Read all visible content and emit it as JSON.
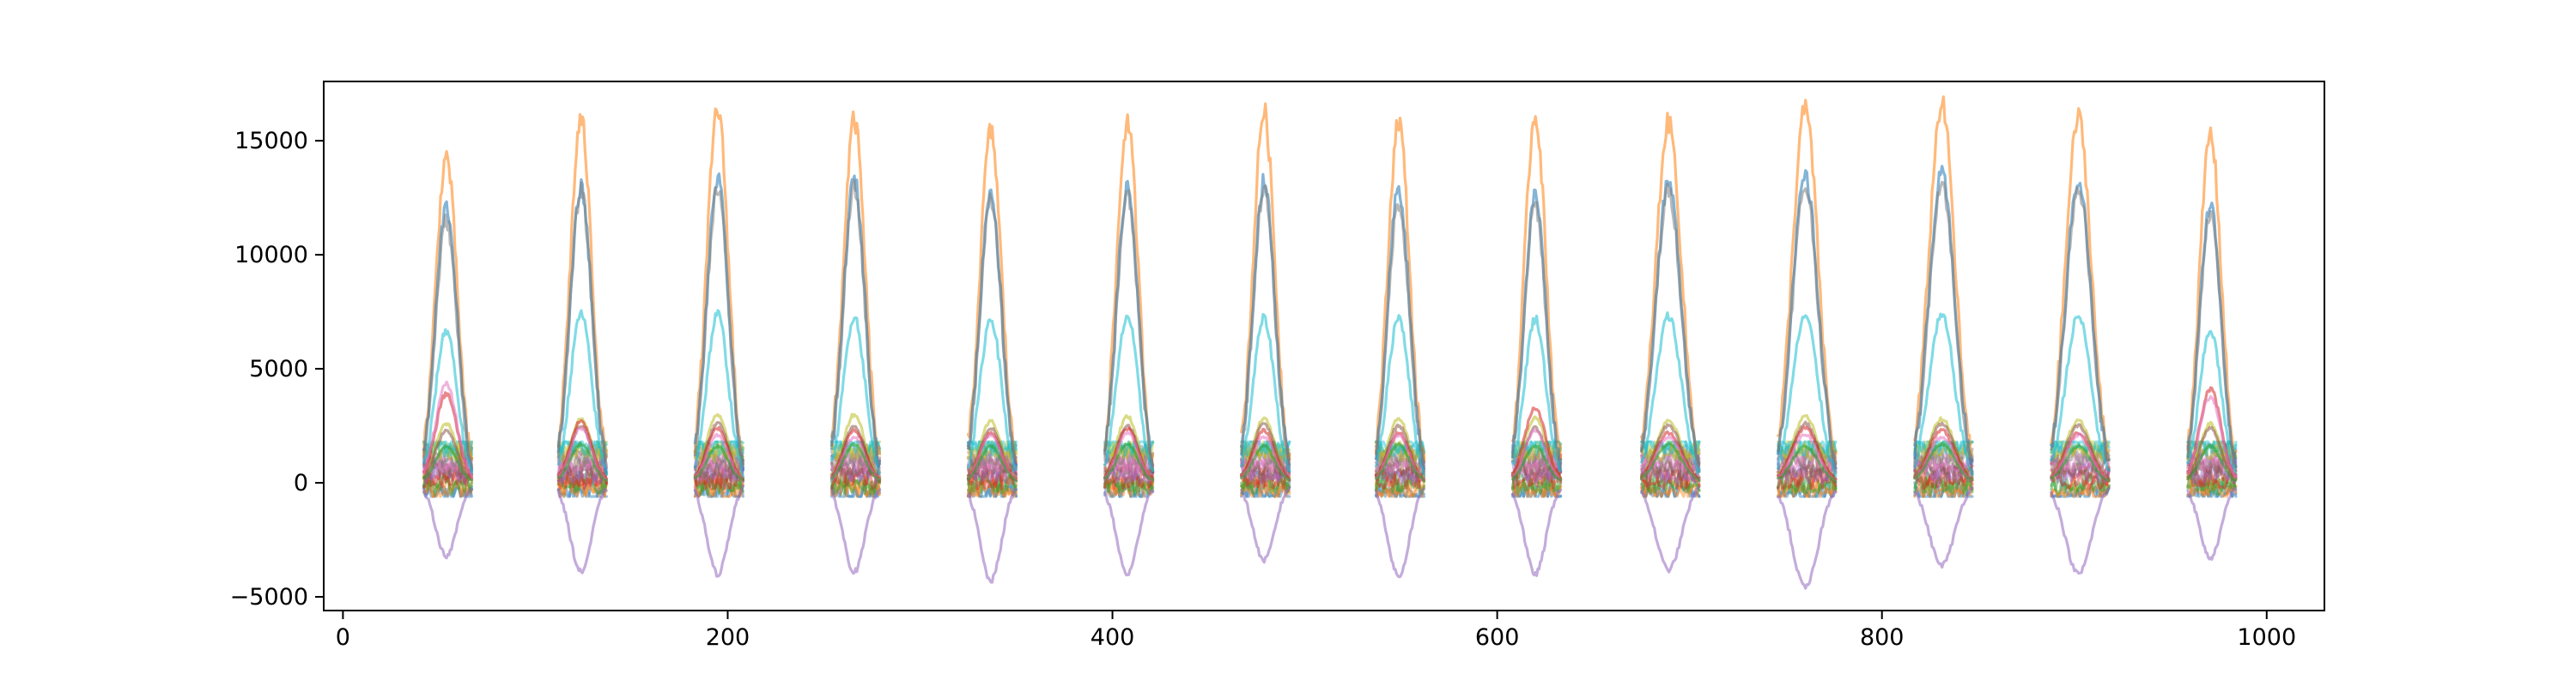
{
  "chart_data": {
    "type": "line",
    "title": "",
    "xlabel": "",
    "ylabel": "",
    "xlim": [
      -10,
      1030
    ],
    "ylim": [
      -5600,
      17600
    ],
    "grid": false,
    "legend": "none",
    "x_ticks": [
      0,
      200,
      400,
      600,
      800,
      1000
    ],
    "y_ticks": [
      -5000,
      0,
      5000,
      10000,
      15000
    ],
    "x_tick_labels": [
      "0",
      "200",
      "400",
      "600",
      "800",
      "1000"
    ],
    "y_tick_labels": [
      "−5000",
      "0",
      "5000",
      "10000",
      "15000"
    ],
    "episode_windows": [
      {
        "x_start": 42,
        "x_end": 67
      },
      {
        "x_start": 112,
        "x_end": 137
      },
      {
        "x_start": 183,
        "x_end": 208
      },
      {
        "x_start": 254,
        "x_end": 279
      },
      {
        "x_start": 325,
        "x_end": 350
      },
      {
        "x_start": 396,
        "x_end": 421
      },
      {
        "x_start": 467,
        "x_end": 492
      },
      {
        "x_start": 537,
        "x_end": 562
      },
      {
        "x_start": 608,
        "x_end": 633
      },
      {
        "x_start": 675,
        "x_end": 705
      },
      {
        "x_start": 746,
        "x_end": 776
      },
      {
        "x_start": 817,
        "x_end": 847
      },
      {
        "x_start": 888,
        "x_end": 918
      },
      {
        "x_start": 959,
        "x_end": 984
      }
    ],
    "series": [
      {
        "color": "#ff7f0e",
        "peaks": [
          14300,
          15900,
          16400,
          15900,
          15400,
          15800,
          16300,
          15900,
          16100,
          15800,
          16400,
          16600,
          16000,
          15300
        ]
      },
      {
        "color": "#1f77b4",
        "peaks": [
          12100,
          13000,
          13300,
          13300,
          12700,
          12900,
          13200,
          12900,
          12600,
          13100,
          13400,
          13500,
          13300,
          12200
        ]
      },
      {
        "color": "#7f7f7f",
        "peaks": [
          11500,
          12800,
          13000,
          12900,
          12400,
          12600,
          12900,
          12300,
          12200,
          12800,
          13000,
          13200,
          13000,
          11800
        ]
      },
      {
        "color": "#17becf",
        "peaks": [
          6700,
          7400,
          7400,
          7300,
          7200,
          7300,
          7200,
          7300,
          7200,
          7300,
          7300,
          7300,
          7300,
          6700
        ]
      },
      {
        "color": "#bcbd22",
        "peaks": [
          2600,
          2800,
          3000,
          3000,
          2700,
          2900,
          2800,
          2800,
          2900,
          2700,
          2900,
          2800,
          2700,
          2600
        ]
      },
      {
        "color": "#8c564b",
        "peaks": [
          2300,
          2500,
          2600,
          2500,
          2400,
          2500,
          2600,
          2500,
          2400,
          2500,
          2600,
          2600,
          2500,
          2400
        ]
      },
      {
        "color": "#d62728",
        "peaks": [
          3900,
          2700,
          2400,
          2300,
          2200,
          2400,
          2300,
          2200,
          3300,
          2200,
          2400,
          2300,
          2200,
          4100
        ]
      },
      {
        "color": "#e377c2",
        "peaks": [
          4300,
          2400,
          2100,
          2000,
          2100,
          2200,
          2000,
          2100,
          2300,
          2000,
          2100,
          2000,
          2100,
          3800
        ]
      },
      {
        "color": "#9467bd",
        "peaks": [
          -3200,
          -3900,
          -4000,
          -3900,
          -4300,
          -4000,
          -3400,
          -4100,
          -4000,
          -3800,
          -4600,
          -3600,
          -4000,
          -3300
        ]
      },
      {
        "color": "#2ca02c",
        "peaks": [
          1600,
          1700,
          1600,
          1700,
          1600,
          1700,
          1600,
          1700,
          1600,
          1700,
          1600,
          1700,
          1600,
          1600
        ]
      }
    ],
    "noise_band": {
      "y_min": -600,
      "y_max": 1800,
      "colors": [
        "#1f77b4",
        "#ff7f0e",
        "#2ca02c",
        "#d62728",
        "#9467bd",
        "#8c564b",
        "#e377c2",
        "#7f7f7f",
        "#bcbd22",
        "#17becf"
      ]
    }
  }
}
